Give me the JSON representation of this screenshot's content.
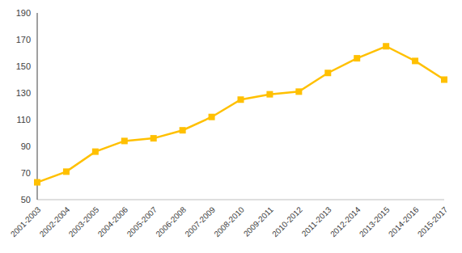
{
  "chart_data": {
    "type": "line",
    "categories": [
      "2001-2003",
      "2002-2004",
      "2003-2005",
      "2004-2006",
      "2005-2007",
      "2006-2008",
      "2007-2009",
      "2008-2010",
      "2009-2011",
      "2010-2012",
      "2011-2013",
      "2012-2014",
      "2013-2015",
      "2014-2016",
      "2015-2017"
    ],
    "values": [
      63,
      71,
      86,
      94,
      96,
      102,
      112,
      125,
      129,
      131,
      145,
      156,
      165,
      154,
      140
    ],
    "color": "#FFC000",
    "marker": "square",
    "ylim": [
      50,
      190
    ],
    "yticks": [
      50,
      70,
      90,
      110,
      130,
      150,
      170,
      190
    ],
    "grid": false
  }
}
